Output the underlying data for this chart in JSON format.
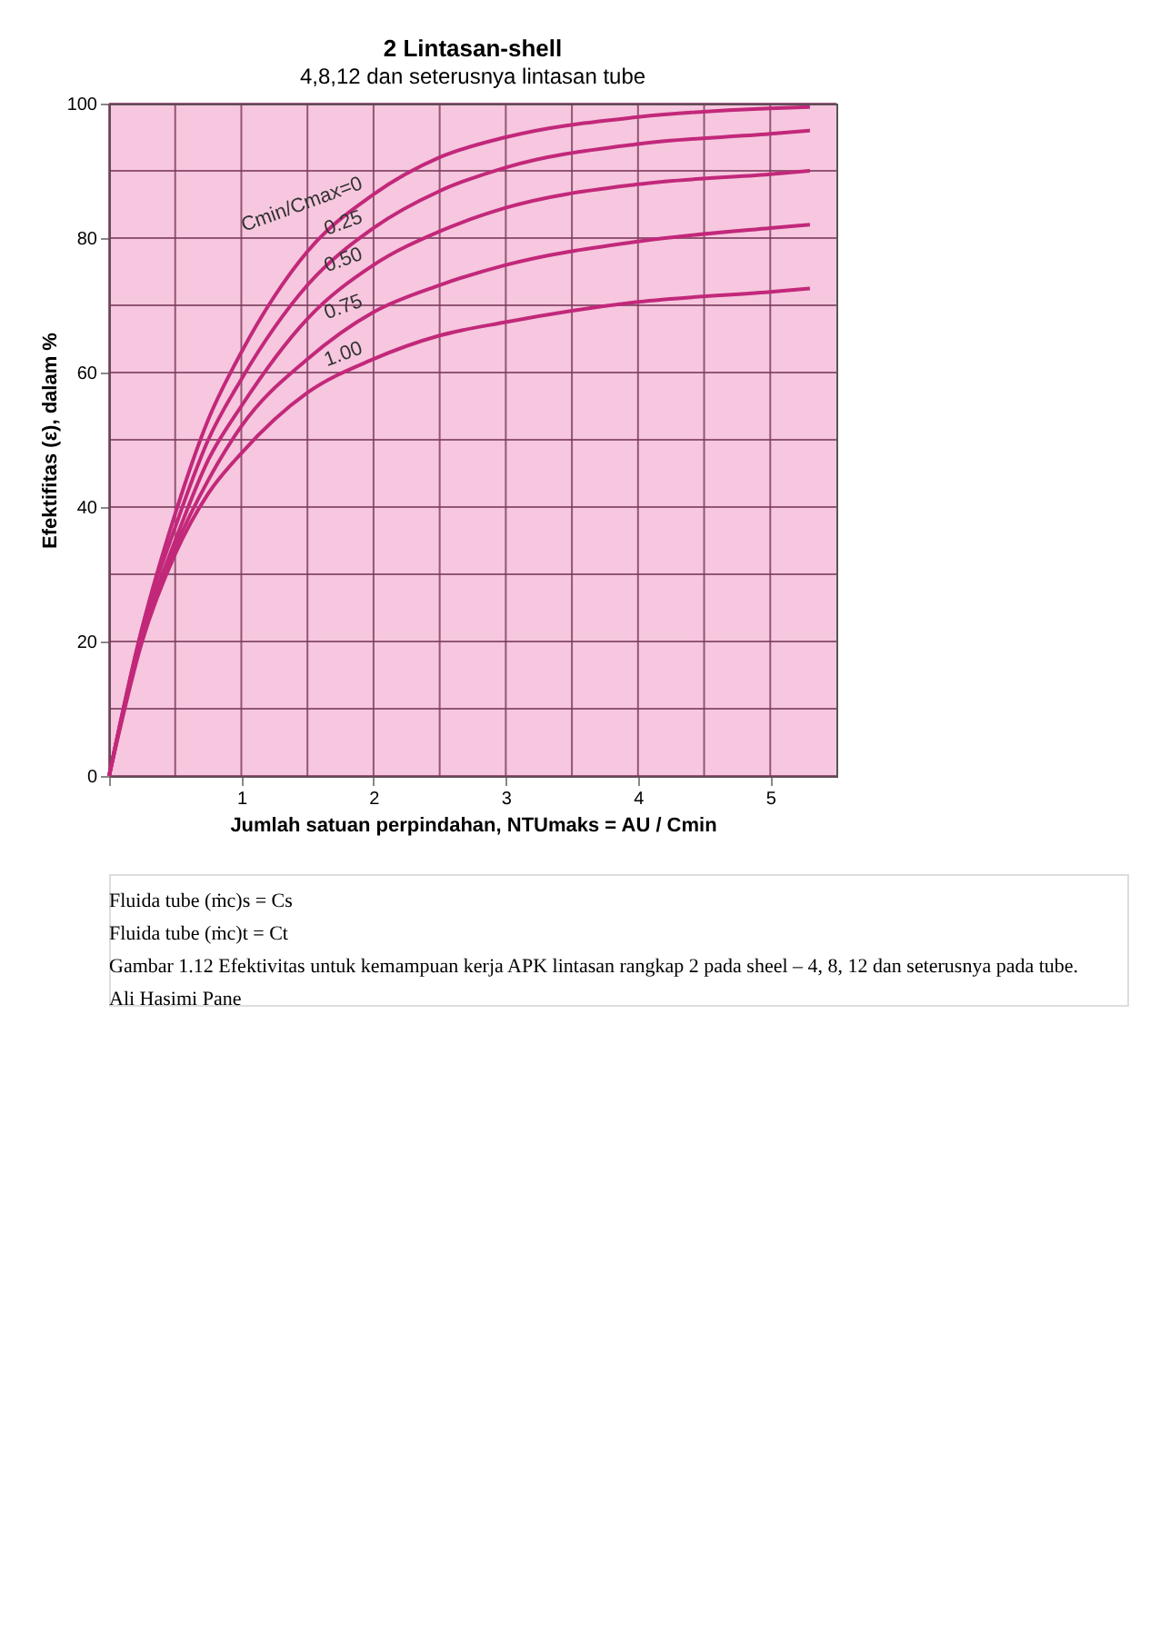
{
  "chart_data": {
    "type": "line",
    "title": "2 Lintasan-shell",
    "subtitle": "4,8,12 dan seterusnya lintasan tube",
    "xlabel": "Jumlah satuan perpindahan, NTUmaks = AU / Cmin",
    "ylabel": "Efektifitas (ε), dalam %",
    "x": [
      0,
      0.25,
      0.5,
      0.75,
      1,
      1.5,
      2,
      2.5,
      3,
      4,
      5,
      5.3
    ],
    "series": [
      {
        "name": "Cmin/Cmax=0",
        "color": "#c2287a",
        "values": [
          0,
          22,
          39,
          53,
          63,
          78,
          86.5,
          92,
          95,
          98,
          99.3,
          99.5
        ]
      },
      {
        "name": "0.25",
        "color": "#c2287a",
        "values": [
          0,
          22,
          37,
          50,
          59,
          73,
          81.5,
          87,
          90.5,
          94,
          95.5,
          96
        ]
      },
      {
        "name": "0.50",
        "color": "#c2287a",
        "values": [
          0,
          21,
          35,
          47,
          55,
          68,
          76,
          81,
          84.5,
          88,
          89.5,
          90
        ]
      },
      {
        "name": "0.75",
        "color": "#c2287a",
        "values": [
          0,
          21,
          34,
          44,
          52,
          62,
          69,
          73,
          76,
          79.5,
          81.5,
          82
        ]
      },
      {
        "name": "1.00",
        "color": "#c2287a",
        "values": [
          0,
          20,
          33,
          42,
          48,
          57,
          62,
          65.5,
          67.5,
          70.5,
          72,
          72.5
        ]
      }
    ],
    "xlim": [
      0,
      5.5
    ],
    "ylim": [
      0,
      100
    ],
    "xticks": [
      {
        "value": 0,
        "label": null
      },
      {
        "value": 0.5,
        "label": null
      },
      1,
      {
        "value": 1.5,
        "label": null
      },
      2,
      {
        "value": 2.5,
        "label": null
      },
      3,
      {
        "value": 3.5,
        "label": null
      },
      4,
      {
        "value": 4.5,
        "label": null
      },
      5
    ],
    "yticks": [
      0,
      {
        "value": 10,
        "label": null
      },
      20,
      {
        "value": 30,
        "label": null
      },
      40,
      {
        "value": 50,
        "label": null
      },
      60,
      {
        "value": 70,
        "label": null
      },
      80,
      {
        "value": 90,
        "label": null
      },
      100
    ],
    "grid": true,
    "marker": "none",
    "line_style": "solid",
    "annotations": [
      "Fluida tube (ṁc)s = Cs",
      "Fluida tube (ṁc)t = Ct",
      "Gambar 1.12 Efektivitas untuk kemampuan kerja APK lintasan rangkap 2 pada sheel – 4, 8, 12 dan seterusnya pada tube.",
      "Ali Hasimi Pane"
    ]
  }
}
